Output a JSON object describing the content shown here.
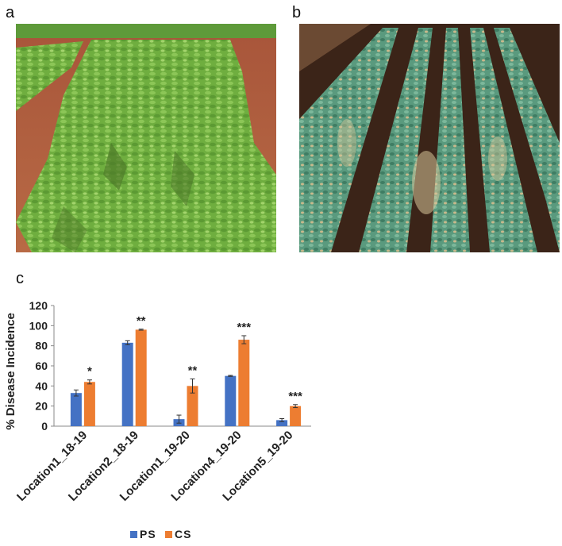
{
  "panels": {
    "a": "a",
    "b": "b",
    "c": "c"
  },
  "photos": {
    "a_icon": "chickpea-field-healthy-photo",
    "b_icon": "chickpea-field-diseased-photo"
  },
  "chart_data": {
    "type": "bar",
    "title": "",
    "xlabel": "",
    "ylabel": "% Disease Incidence",
    "ylim": [
      0,
      120
    ],
    "yticks": [
      0,
      20,
      40,
      60,
      80,
      100,
      120
    ],
    "categories": [
      "Location1_18-19",
      "Location2_18-19",
      "Location1_19-20",
      "Location4_19-20",
      "Location5_19-20"
    ],
    "series": [
      {
        "name": "PS",
        "color": "#4472C4",
        "values": [
          33,
          83,
          7,
          50,
          6
        ],
        "errors": [
          3,
          2,
          4,
          0.5,
          1.5
        ]
      },
      {
        "name": "CS",
        "color": "#ED7D31",
        "values": [
          44,
          96,
          40,
          86,
          20
        ],
        "errors": [
          2,
          0.5,
          7,
          4,
          1.5
        ]
      }
    ],
    "significance": [
      "*",
      "**",
      "**",
      "***",
      "***"
    ],
    "legend_position": "bottom"
  }
}
